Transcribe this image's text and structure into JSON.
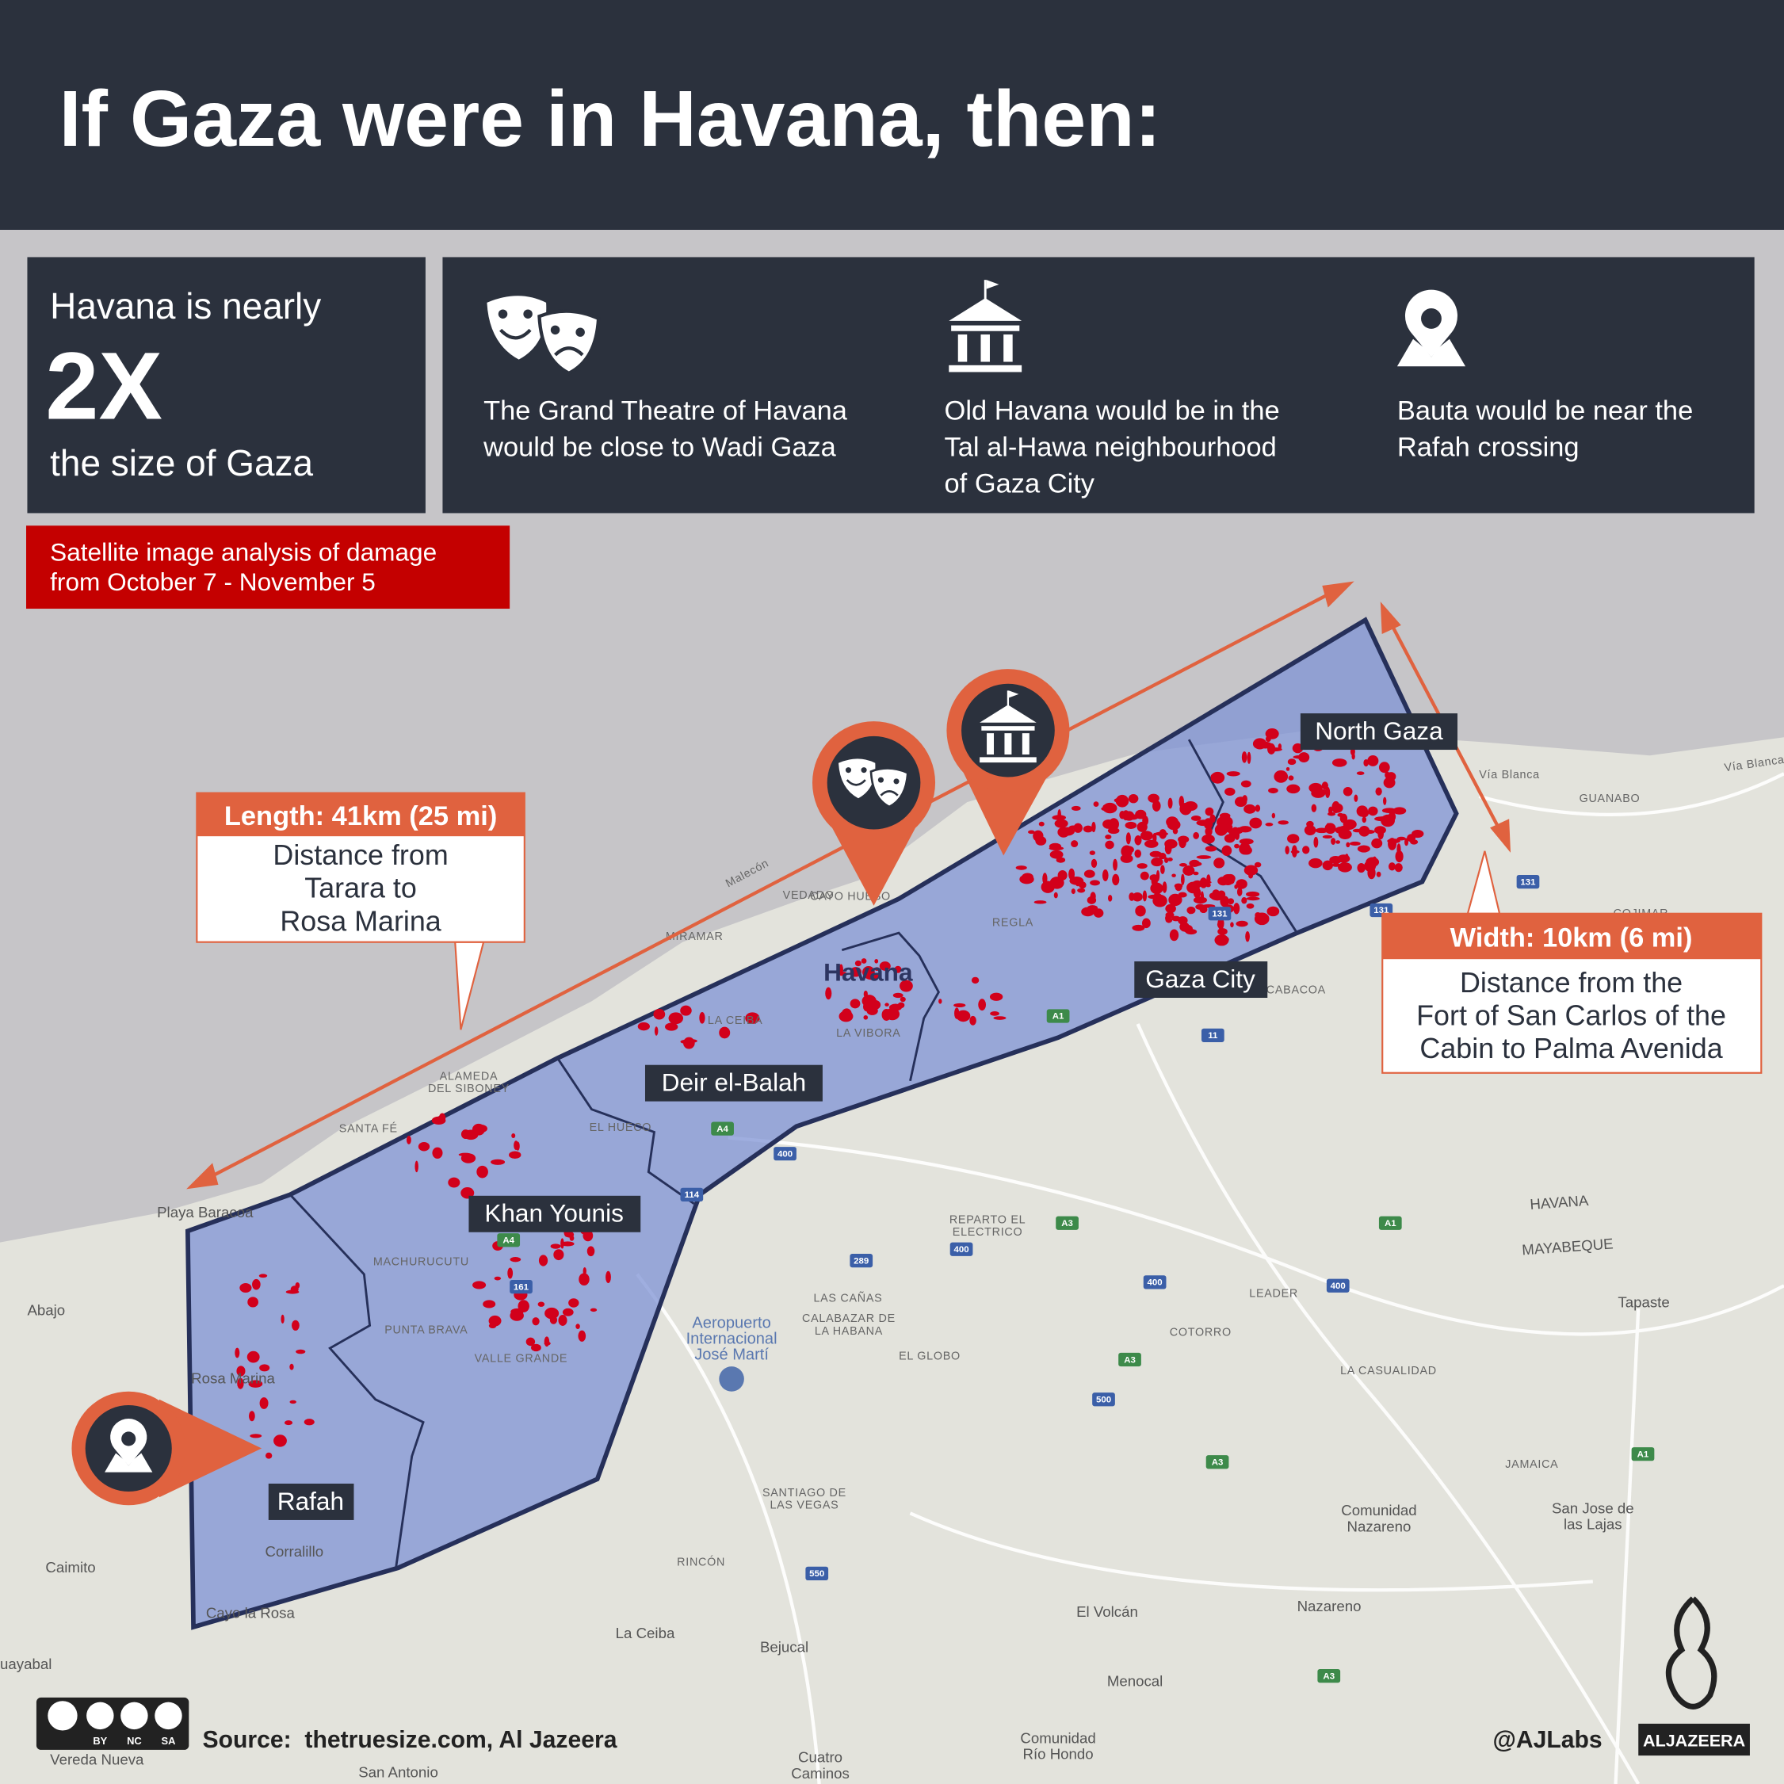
{
  "header": {
    "title": "If Gaza were in Havana, then:"
  },
  "stat_box": {
    "intro": "Havana is nearly",
    "figure": "2X",
    "outro": "the size of Gaza"
  },
  "facts": [
    {
      "lines": [
        "The Grand Theatre of Havana",
        "would be close to Wadi Gaza"
      ]
    },
    {
      "lines": [
        "Old Havana would be in the",
        "Tal al-Hawa neighbourhood",
        "of Gaza City"
      ]
    },
    {
      "lines": [
        "Bauta would be near the",
        "Rafah crossing"
      ]
    }
  ],
  "banner": {
    "lines": [
      "Satellite image analysis of damage",
      "from October 7 - November 5"
    ]
  },
  "length_callout": {
    "heading": "Length: 41km (25 mi)",
    "lines": [
      "Distance from",
      "Tarara to",
      "Rosa Marina"
    ]
  },
  "width_callout": {
    "heading": "Width: 10km (6 mi)",
    "lines": [
      "Distance from the",
      "Fort of San Carlos of the",
      "Cabin to Palma Avenida"
    ]
  },
  "regions": [
    "North Gaza",
    "Gaza City",
    "Deir el-Balah",
    "Khan Younis",
    "Rafah"
  ],
  "map_labels": [
    "Havana",
    "Playa Baracoa",
    "Abajo",
    "Caimito",
    "uayabal",
    "Rosa Marina",
    "Corralillo",
    "Cayo la Rosa",
    "La Ceiba",
    "Bejucal",
    "El Volcán",
    "Menocal",
    "Nazareno",
    "Comunidad",
    "Nazareno",
    "San Jose de",
    "las Lajas",
    "Tapaste",
    "HAVANA",
    "MAYABEQUE",
    "Aeropuerto",
    "Internacional",
    "José Martí",
    "Vereda Nueva",
    "San Antonio",
    "Cuatro",
    "Caminos",
    "Comunidad",
    "Río Hondo",
    "GUANABO",
    "Vía Blanca",
    "Vía Blanca",
    "LAS CAÑAS",
    "EL GLOBO",
    "COTORRO",
    "LA CASUALIDAD",
    "JAMAICA",
    "SANTA FÉ",
    "ALAMEDA",
    "DEL SIBONEY",
    "PUNTA BRAVA",
    "MACHURUCUTU",
    "VALLE GRANDE",
    "RINCÓN",
    "LEADER",
    "REPARTO EL",
    "ELECTRICO",
    "SANTIAGO DE",
    "LAS VEGAS",
    "CALABAZAR DE",
    "LA HABANA",
    "Malecón",
    "VEDADO",
    "CAYO HUESO",
    "MIRAMAR",
    "REGLA",
    "LA CEIBA",
    "LA VIBORA",
    "EL HUECO",
    "COJIMAR",
    "CABACOA"
  ],
  "roads": [
    "A4",
    "161",
    "400",
    "A4",
    "114",
    "289",
    "400",
    "A3",
    "A1",
    "400",
    "400",
    "A3",
    "500",
    "A3",
    "550",
    "A3",
    "A1",
    "11",
    "131",
    "131",
    "131",
    "A1"
  ],
  "footer": {
    "license": [
      "BY",
      "NC",
      "SA"
    ],
    "source": "Source:  thetruesize.com, Al Jazeera",
    "handle": "@AJLabs",
    "logo": "ALJAZEERA"
  }
}
